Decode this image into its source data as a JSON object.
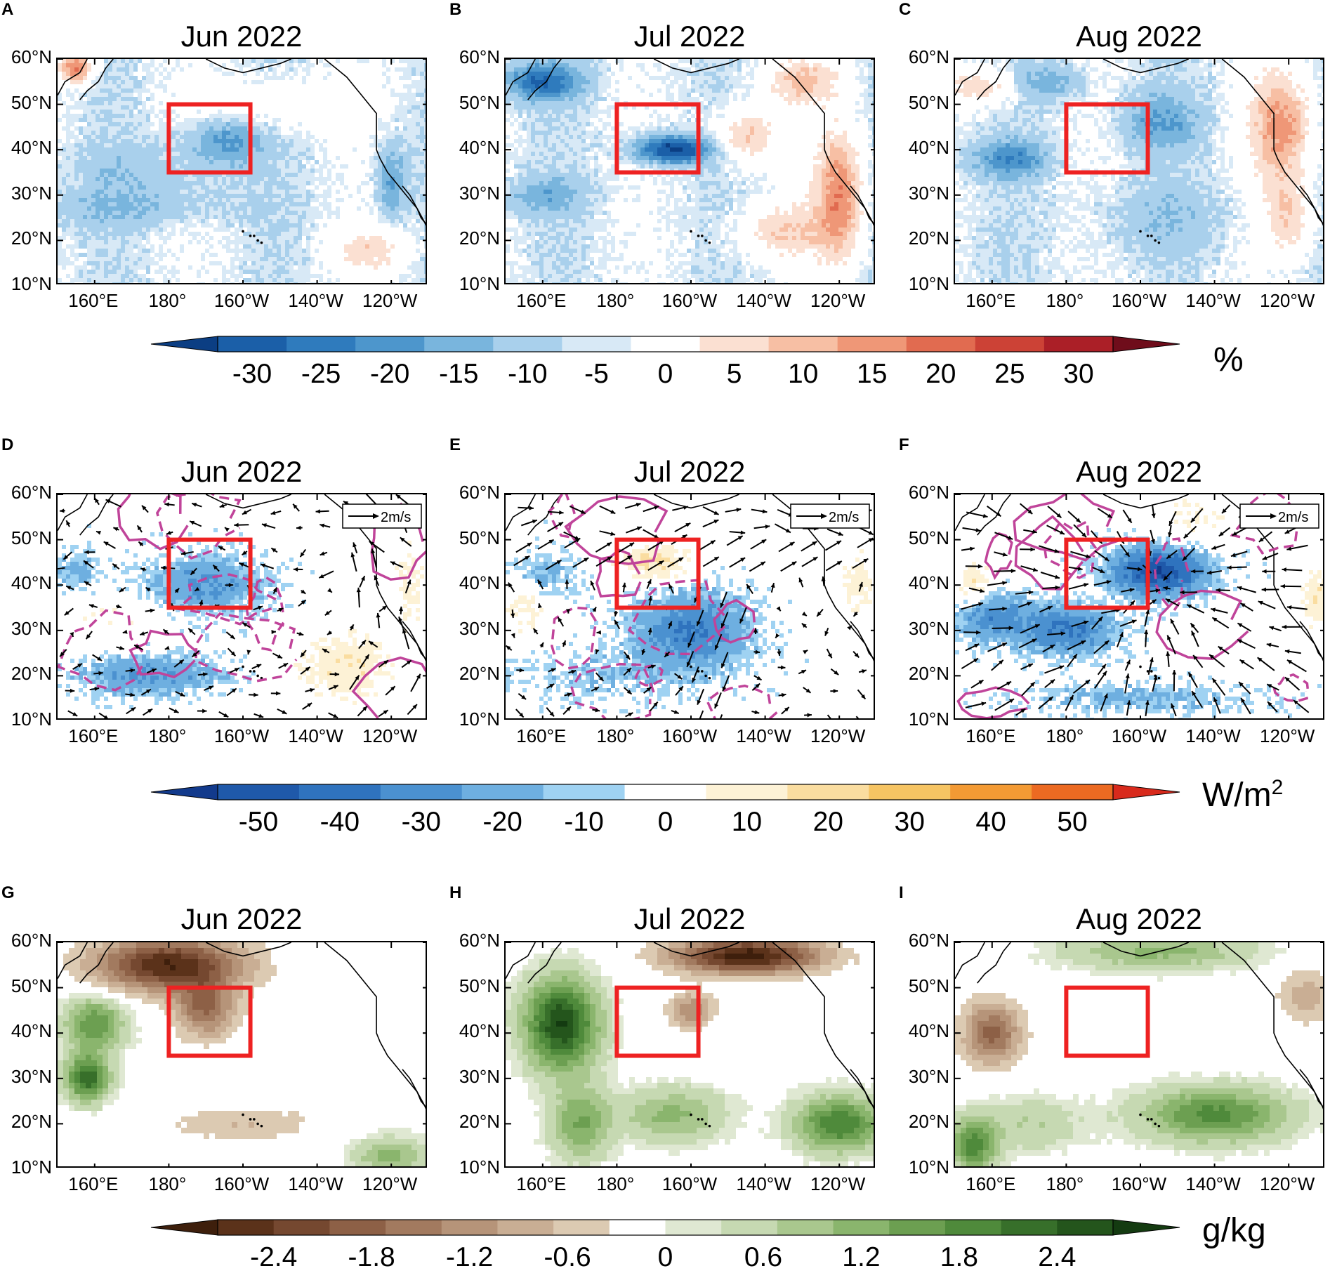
{
  "panels": [
    {
      "id": "A",
      "title": "Jun 2022",
      "var": "cloud"
    },
    {
      "id": "B",
      "title": "Jul 2022",
      "var": "cloud"
    },
    {
      "id": "C",
      "title": "Aug 2022",
      "var": "cloud"
    },
    {
      "id": "D",
      "title": "Jun 2022",
      "var": "flux"
    },
    {
      "id": "E",
      "title": "Jul 2022",
      "var": "flux"
    },
    {
      "id": "F",
      "title": "Aug 2022",
      "var": "flux"
    },
    {
      "id": "G",
      "title": "Jun 2022",
      "var": "humidity"
    },
    {
      "id": "H",
      "title": "Jul 2022",
      "var": "humidity"
    },
    {
      "id": "I",
      "title": "Aug 2022",
      "var": "humidity"
    }
  ],
  "lat_labels": [
    "60°N",
    "50°N",
    "40°N",
    "30°N",
    "20°N",
    "10°N"
  ],
  "lon_labels": [
    "160°E",
    "180°",
    "160°W",
    "140°W",
    "120°W"
  ],
  "vector_reference": "2m/s",
  "highlight_box": {
    "lon_min": 180,
    "lon_max": -158,
    "lat_min": 35,
    "lat_max": 50,
    "color": "#ee2222"
  },
  "colorbars": [
    {
      "unit": "%",
      "ticks": [
        "-30",
        "-25",
        "-20",
        "-15",
        "-10",
        "-5",
        "0",
        "5",
        "10",
        "15",
        "20",
        "25",
        "30"
      ],
      "colors": [
        "#0b3e83",
        "#1b5fa8",
        "#2f7bbd",
        "#4d96cc",
        "#79b5dd",
        "#a9d0ec",
        "#d8e9f6",
        "#ffffff",
        "#fbe0d2",
        "#f7bfa4",
        "#ef9777",
        "#e16b50",
        "#cc4236",
        "#ab1f27",
        "#6f0d1b"
      ]
    },
    {
      "unit": "W/m",
      "unit_sup": "2",
      "ticks": [
        "-50",
        "-40",
        "-30",
        "-20",
        "-10",
        "0",
        "10",
        "20",
        "30",
        "40",
        "50"
      ],
      "colors": [
        "#123a8c",
        "#1f59aa",
        "#2f73be",
        "#4b91d0",
        "#6eafe0",
        "#9fd2f2",
        "#ffffff",
        "#fdf2d6",
        "#faddA0",
        "#f6c463",
        "#f39a34",
        "#ec6a22",
        "#d82a1c"
      ]
    },
    {
      "unit": "g/kg",
      "ticks": [
        "-2.4",
        "-1.8",
        "-1.2",
        "-0.6",
        "0",
        "0.6",
        "1.2",
        "1.8",
        "2.4"
      ],
      "colors": [
        "#3e1f0c",
        "#5b321a",
        "#754830",
        "#8d6046",
        "#a27a5f",
        "#b69479",
        "#c9ae94",
        "#dccab2",
        "#ffffff",
        "#dfe8d2",
        "#c6d9b2",
        "#a9c78e",
        "#8ab56d",
        "#6c9f51",
        "#4f8a3b",
        "#376f2a",
        "#24551c",
        "#143b11"
      ]
    }
  ]
}
